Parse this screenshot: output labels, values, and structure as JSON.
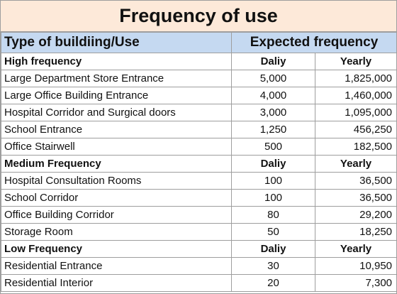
{
  "title": "Frequency of use",
  "header": {
    "col1": "Type of buildiing/Use",
    "col2": "Expected frequency"
  },
  "sections": [
    {
      "name": "High frequency",
      "daily_label": "Daliy",
      "yearly_label": "Yearly",
      "rows": [
        {
          "use": "Large Department Store Entrance",
          "daily": "5,000",
          "yearly": "1,825,000"
        },
        {
          "use": "Large Office Building Entrance",
          "daily": "4,000",
          "yearly": "1,460,000"
        },
        {
          "use": "Hospital Corridor and Surgical doors",
          "daily": "3,000",
          "yearly": "1,095,000"
        },
        {
          "use": "School Entrance",
          "daily": "1,250",
          "yearly": "456,250"
        },
        {
          "use": "Office Stairwell",
          "daily": "500",
          "yearly": "182,500"
        }
      ]
    },
    {
      "name": "Medium Frequency",
      "daily_label": "Daliy",
      "yearly_label": "Yearly",
      "rows": [
        {
          "use": "Hospital Consultation Rooms",
          "daily": "100",
          "yearly": "36,500"
        },
        {
          "use": "School Corridor",
          "daily": "100",
          "yearly": "36,500"
        },
        {
          "use": "Office Building Corridor",
          "daily": "80",
          "yearly": "29,200"
        },
        {
          "use": "Storage Room",
          "daily": "50",
          "yearly": "18,250"
        }
      ]
    },
    {
      "name": "Low Frequency",
      "daily_label": "Daliy",
      "yearly_label": "Yearly",
      "rows": [
        {
          "use": "Residential Entrance",
          "daily": "30",
          "yearly": "10,950"
        },
        {
          "use": "Residential Interior",
          "daily": "20",
          "yearly": "7,300"
        }
      ]
    }
  ]
}
